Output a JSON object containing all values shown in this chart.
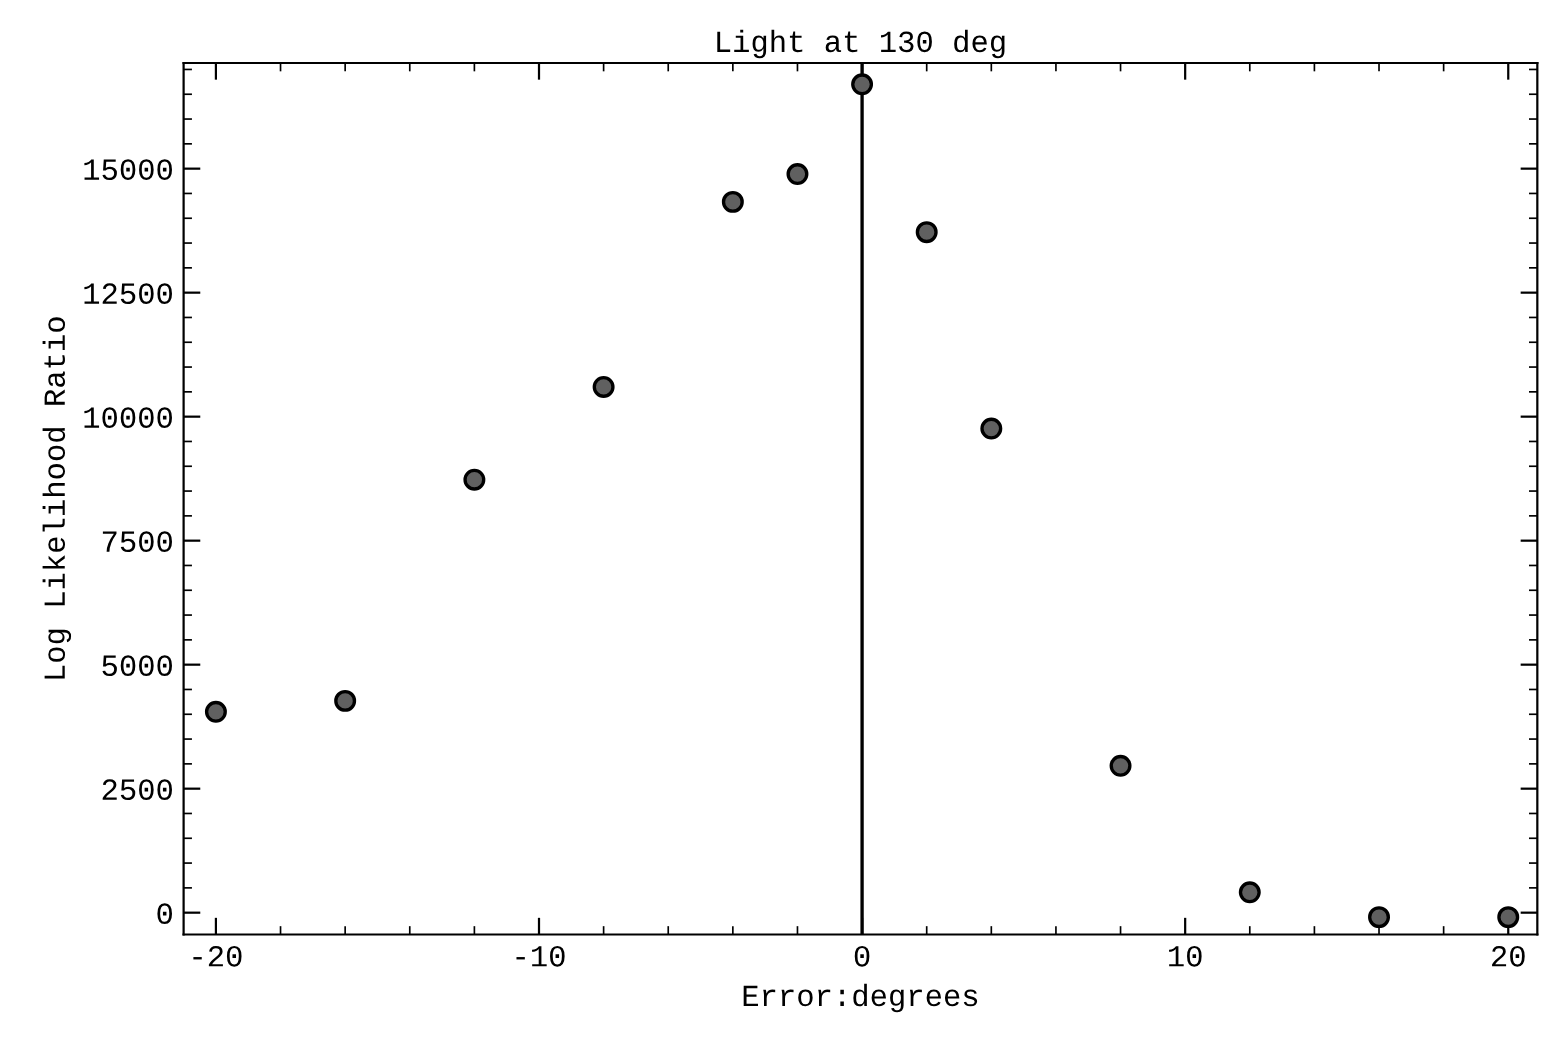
{
  "chart_data": {
    "type": "scatter",
    "title": "Light at 130 deg",
    "xlabel": "Error:degrees",
    "ylabel": "Log Likelihood Ratio",
    "x": [
      -20,
      -16,
      -12,
      -8,
      -4,
      -2,
      0,
      2,
      4,
      8,
      12,
      16,
      20
    ],
    "series": [
      {
        "color": "#606060",
        "values": [
          4050,
          4270,
          8730,
          10600,
          14330,
          14890,
          16700,
          13720,
          9760,
          2960,
          410,
          -90,
          -90
        ]
      }
    ],
    "xlim": [
      -21,
      20.9
    ],
    "ylim": [
      -440,
      17130
    ],
    "xticks": [
      -20,
      -10,
      0,
      10,
      20
    ],
    "yticks": [
      0,
      2500,
      5000,
      7500,
      10000,
      12500,
      15000
    ],
    "ref_lines": [
      {
        "axis": "x",
        "value": 0,
        "color": "#000000"
      }
    ],
    "marker": "circle",
    "grid": false,
    "legend": false
  }
}
